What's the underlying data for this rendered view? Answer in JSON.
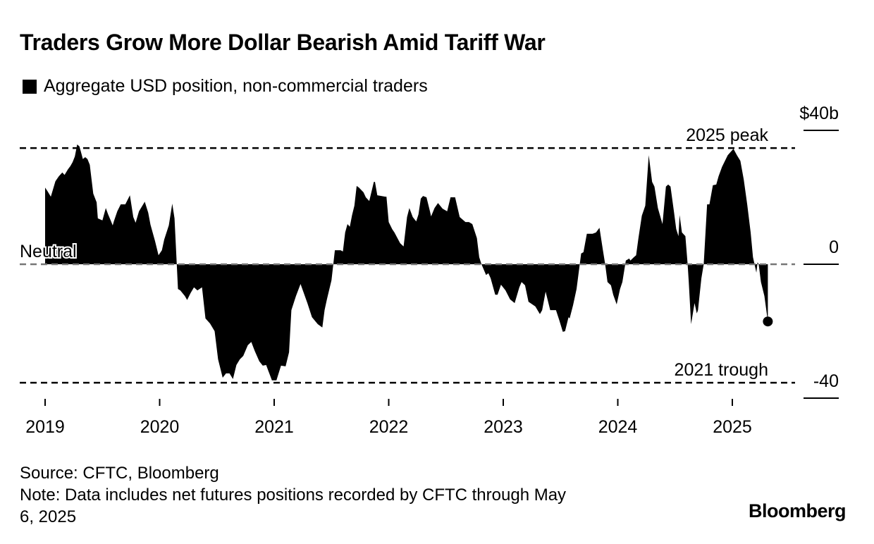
{
  "title": "Traders Grow More Dollar Bearish Amid Tariff War",
  "legend": {
    "label": "Aggregate USD position, non-commercial traders",
    "color": "#000000"
  },
  "footer": {
    "source": "Source: CFTC, Bloomberg",
    "note_line1": "Note: Data includes net futures positions recorded by CFTC through May",
    "note_line2": "6, 2025"
  },
  "logo": "Bloomberg",
  "chart_data": {
    "type": "area",
    "title": "Traders Grow More Dollar Bearish Amid Tariff War",
    "ylabel": "$b",
    "ylim": [
      -40,
      40
    ],
    "xlim": [
      2019,
      2025.6
    ],
    "yticks": [
      {
        "value": 40,
        "label": "$40b"
      },
      {
        "value": 0,
        "label": "0"
      },
      {
        "value": -40,
        "label": "-40"
      }
    ],
    "xticks": [
      {
        "value": 2019,
        "label": "2019"
      },
      {
        "value": 2020,
        "label": "2020"
      },
      {
        "value": 2021,
        "label": "2021"
      },
      {
        "value": 2022,
        "label": "2022"
      },
      {
        "value": 2023,
        "label": "2023"
      },
      {
        "value": 2024,
        "label": "2024"
      },
      {
        "value": 2025,
        "label": "2025"
      }
    ],
    "reference_lines": [
      {
        "name": "peak",
        "value": 34.7,
        "label": "2025 peak"
      },
      {
        "name": "neutral",
        "value": 0,
        "label": "Neutral"
      },
      {
        "name": "trough",
        "value": -35.4,
        "label": "2021 trough"
      }
    ],
    "series": [
      {
        "name": "Aggregate USD position, non-commercial traders",
        "points": [
          [
            2019.0,
            22.9
          ],
          [
            2019.02,
            21.9
          ],
          [
            2019.05,
            20.2
          ],
          [
            2019.09,
            24.8
          ],
          [
            2019.12,
            26.3
          ],
          [
            2019.15,
            27.4
          ],
          [
            2019.17,
            26.7
          ],
          [
            2019.2,
            28.4
          ],
          [
            2019.22,
            29.3
          ],
          [
            2019.24,
            30.5
          ],
          [
            2019.26,
            32.2
          ],
          [
            2019.28,
            35.8
          ],
          [
            2019.3,
            35.2
          ],
          [
            2019.33,
            31.4
          ],
          [
            2019.35,
            32.0
          ],
          [
            2019.37,
            31.4
          ],
          [
            2019.39,
            29.7
          ],
          [
            2019.42,
            21.1
          ],
          [
            2019.45,
            18.5
          ],
          [
            2019.46,
            13.7
          ],
          [
            2019.5,
            13.1
          ],
          [
            2019.53,
            16.8
          ],
          [
            2019.55,
            14.9
          ],
          [
            2019.57,
            13.3
          ],
          [
            2019.59,
            11.6
          ],
          [
            2019.6,
            12.8
          ],
          [
            2019.63,
            15.8
          ],
          [
            2019.66,
            17.9
          ],
          [
            2019.7,
            17.9
          ],
          [
            2019.74,
            20.6
          ],
          [
            2019.77,
            14.1
          ],
          [
            2019.79,
            12.4
          ],
          [
            2019.82,
            15.8
          ],
          [
            2019.87,
            18.7
          ],
          [
            2019.9,
            15.4
          ],
          [
            2019.92,
            11.8
          ],
          [
            2019.96,
            6.9
          ],
          [
            2019.99,
            2.7
          ],
          [
            2020.02,
            4.2
          ],
          [
            2020.04,
            7.4
          ],
          [
            2020.08,
            11.6
          ],
          [
            2020.11,
            18.1
          ],
          [
            2020.13,
            13.7
          ],
          [
            2020.16,
            -7.4
          ],
          [
            2020.18,
            -7.8
          ],
          [
            2020.22,
            -9.5
          ],
          [
            2020.24,
            -10.7
          ],
          [
            2020.27,
            -8.6
          ],
          [
            2020.3,
            -6.9
          ],
          [
            2020.33,
            -7.8
          ],
          [
            2020.37,
            -6.9
          ],
          [
            2020.4,
            -16.2
          ],
          [
            2020.44,
            -17.7
          ],
          [
            2020.48,
            -20.0
          ],
          [
            2020.51,
            -28.4
          ],
          [
            2020.55,
            -33.9
          ],
          [
            2020.58,
            -32.6
          ],
          [
            2020.61,
            -32.6
          ],
          [
            2020.64,
            -34.3
          ],
          [
            2020.67,
            -30.1
          ],
          [
            2020.7,
            -28.4
          ],
          [
            2020.73,
            -27.4
          ],
          [
            2020.77,
            -24.2
          ],
          [
            2020.8,
            -23.2
          ],
          [
            2020.83,
            -25.9
          ],
          [
            2020.87,
            -29.0
          ],
          [
            2020.9,
            -30.3
          ],
          [
            2020.93,
            -30.1
          ],
          [
            2020.98,
            -34.7
          ],
          [
            2021.02,
            -34.7
          ],
          [
            2021.06,
            -30.3
          ],
          [
            2021.1,
            -30.5
          ],
          [
            2021.13,
            -26.3
          ],
          [
            2021.15,
            -13.7
          ],
          [
            2021.19,
            -9.5
          ],
          [
            2021.23,
            -5.9
          ],
          [
            2021.29,
            -11.6
          ],
          [
            2021.33,
            -15.8
          ],
          [
            2021.38,
            -17.9
          ],
          [
            2021.42,
            -18.9
          ],
          [
            2021.44,
            -13.7
          ],
          [
            2021.46,
            -10.5
          ],
          [
            2021.5,
            -4.8
          ],
          [
            2021.53,
            4.2
          ],
          [
            2021.58,
            4.2
          ],
          [
            2021.6,
            3.8
          ],
          [
            2021.62,
            9.5
          ],
          [
            2021.64,
            12.0
          ],
          [
            2021.66,
            11.2
          ],
          [
            2021.68,
            14.7
          ],
          [
            2021.7,
            17.5
          ],
          [
            2021.72,
            23.4
          ],
          [
            2021.74,
            22.9
          ],
          [
            2021.78,
            21.5
          ],
          [
            2021.8,
            20.0
          ],
          [
            2021.83,
            18.9
          ],
          [
            2021.87,
            24.6
          ],
          [
            2021.88,
            24.6
          ],
          [
            2021.9,
            20.6
          ],
          [
            2021.97,
            20.2
          ],
          [
            2021.98,
            20.2
          ],
          [
            2022.0,
            12.6
          ],
          [
            2022.03,
            10.5
          ],
          [
            2022.05,
            9.5
          ],
          [
            2022.1,
            6.3
          ],
          [
            2022.13,
            5.3
          ],
          [
            2022.16,
            14.1
          ],
          [
            2022.18,
            16.8
          ],
          [
            2022.21,
            14.1
          ],
          [
            2022.24,
            12.8
          ],
          [
            2022.26,
            14.9
          ],
          [
            2022.28,
            19.6
          ],
          [
            2022.3,
            20.4
          ],
          [
            2022.33,
            20.0
          ],
          [
            2022.36,
            15.8
          ],
          [
            2022.37,
            14.3
          ],
          [
            2022.4,
            16.8
          ],
          [
            2022.43,
            18.3
          ],
          [
            2022.47,
            16.6
          ],
          [
            2022.51,
            15.8
          ],
          [
            2022.54,
            20.0
          ],
          [
            2022.58,
            20.0
          ],
          [
            2022.62,
            14.1
          ],
          [
            2022.67,
            12.6
          ],
          [
            2022.7,
            12.6
          ],
          [
            2022.73,
            12.0
          ],
          [
            2022.77,
            7.8
          ],
          [
            2022.79,
            2.1
          ],
          [
            2022.81,
            0
          ],
          [
            2022.85,
            -3.2
          ],
          [
            2022.87,
            -2.7
          ],
          [
            2022.89,
            -4.2
          ],
          [
            2022.93,
            -9.1
          ],
          [
            2022.95,
            -9.1
          ],
          [
            2022.98,
            -6.1
          ],
          [
            2023.02,
            -7.8
          ],
          [
            2023.06,
            -10.5
          ],
          [
            2023.1,
            -11.6
          ],
          [
            2023.14,
            -6.9
          ],
          [
            2023.16,
            -5.3
          ],
          [
            2023.19,
            -6.3
          ],
          [
            2023.22,
            -11.2
          ],
          [
            2023.28,
            -12.6
          ],
          [
            2023.32,
            -14.9
          ],
          [
            2023.34,
            -13.7
          ],
          [
            2023.37,
            -8.2
          ],
          [
            2023.41,
            -13.7
          ],
          [
            2023.46,
            -13.7
          ],
          [
            2023.49,
            -16.8
          ],
          [
            2023.52,
            -20.2
          ],
          [
            2023.54,
            -20.0
          ],
          [
            2023.57,
            -15.8
          ],
          [
            2023.58,
            -16.2
          ],
          [
            2023.61,
            -12.2
          ],
          [
            2023.64,
            -7.4
          ],
          [
            2023.68,
            3.2
          ],
          [
            2023.7,
            3.6
          ],
          [
            2023.73,
            9.1
          ],
          [
            2023.78,
            9.1
          ],
          [
            2023.81,
            9.5
          ],
          [
            2023.84,
            10.9
          ],
          [
            2023.87,
            4.2
          ],
          [
            2023.89,
            0
          ],
          [
            2023.91,
            -5.3
          ],
          [
            2023.94,
            -6.3
          ],
          [
            2023.96,
            -9.1
          ],
          [
            2023.99,
            -12.0
          ],
          [
            2024.02,
            -7.4
          ],
          [
            2024.04,
            -5.3
          ],
          [
            2024.07,
            1.1
          ],
          [
            2024.1,
            1.7
          ],
          [
            2024.11,
            1.1
          ],
          [
            2024.14,
            2.1
          ],
          [
            2024.16,
            2.7
          ],
          [
            2024.18,
            7.8
          ],
          [
            2024.21,
            14.5
          ],
          [
            2024.24,
            17.5
          ],
          [
            2024.27,
            32.6
          ],
          [
            2024.3,
            24.6
          ],
          [
            2024.32,
            23.2
          ],
          [
            2024.35,
            16.8
          ],
          [
            2024.39,
            12.0
          ],
          [
            2024.42,
            23.2
          ],
          [
            2024.44,
            23.8
          ],
          [
            2024.46,
            23.2
          ],
          [
            2024.49,
            15.8
          ],
          [
            2024.51,
            10.5
          ],
          [
            2024.53,
            8.4
          ],
          [
            2024.54,
            14.7
          ],
          [
            2024.56,
            9.5
          ],
          [
            2024.59,
            8.4
          ],
          [
            2024.61,
            0
          ],
          [
            2024.62,
            -5.3
          ],
          [
            2024.64,
            -17.9
          ],
          [
            2024.67,
            -11.6
          ],
          [
            2024.69,
            -14.7
          ],
          [
            2024.7,
            -13.7
          ],
          [
            2024.71,
            -10.5
          ],
          [
            2024.73,
            -4.2
          ],
          [
            2024.75,
            0
          ],
          [
            2024.78,
            17.9
          ],
          [
            2024.8,
            17.9
          ],
          [
            2024.83,
            23.6
          ],
          [
            2024.86,
            23.8
          ],
          [
            2024.88,
            26.3
          ],
          [
            2024.91,
            29.1
          ],
          [
            2024.96,
            32.6
          ],
          [
            2025.01,
            34.5
          ],
          [
            2025.04,
            32.6
          ],
          [
            2025.07,
            30.9
          ],
          [
            2025.1,
            25.3
          ],
          [
            2025.13,
            17.9
          ],
          [
            2025.16,
            9.5
          ],
          [
            2025.18,
            2.1
          ],
          [
            2025.21,
            -2.5
          ],
          [
            2025.22,
            0.6
          ],
          [
            2025.23,
            0
          ],
          [
            2025.25,
            -5.3
          ],
          [
            2025.28,
            -9.5
          ],
          [
            2025.31,
            -17.1
          ]
        ]
      }
    ]
  }
}
